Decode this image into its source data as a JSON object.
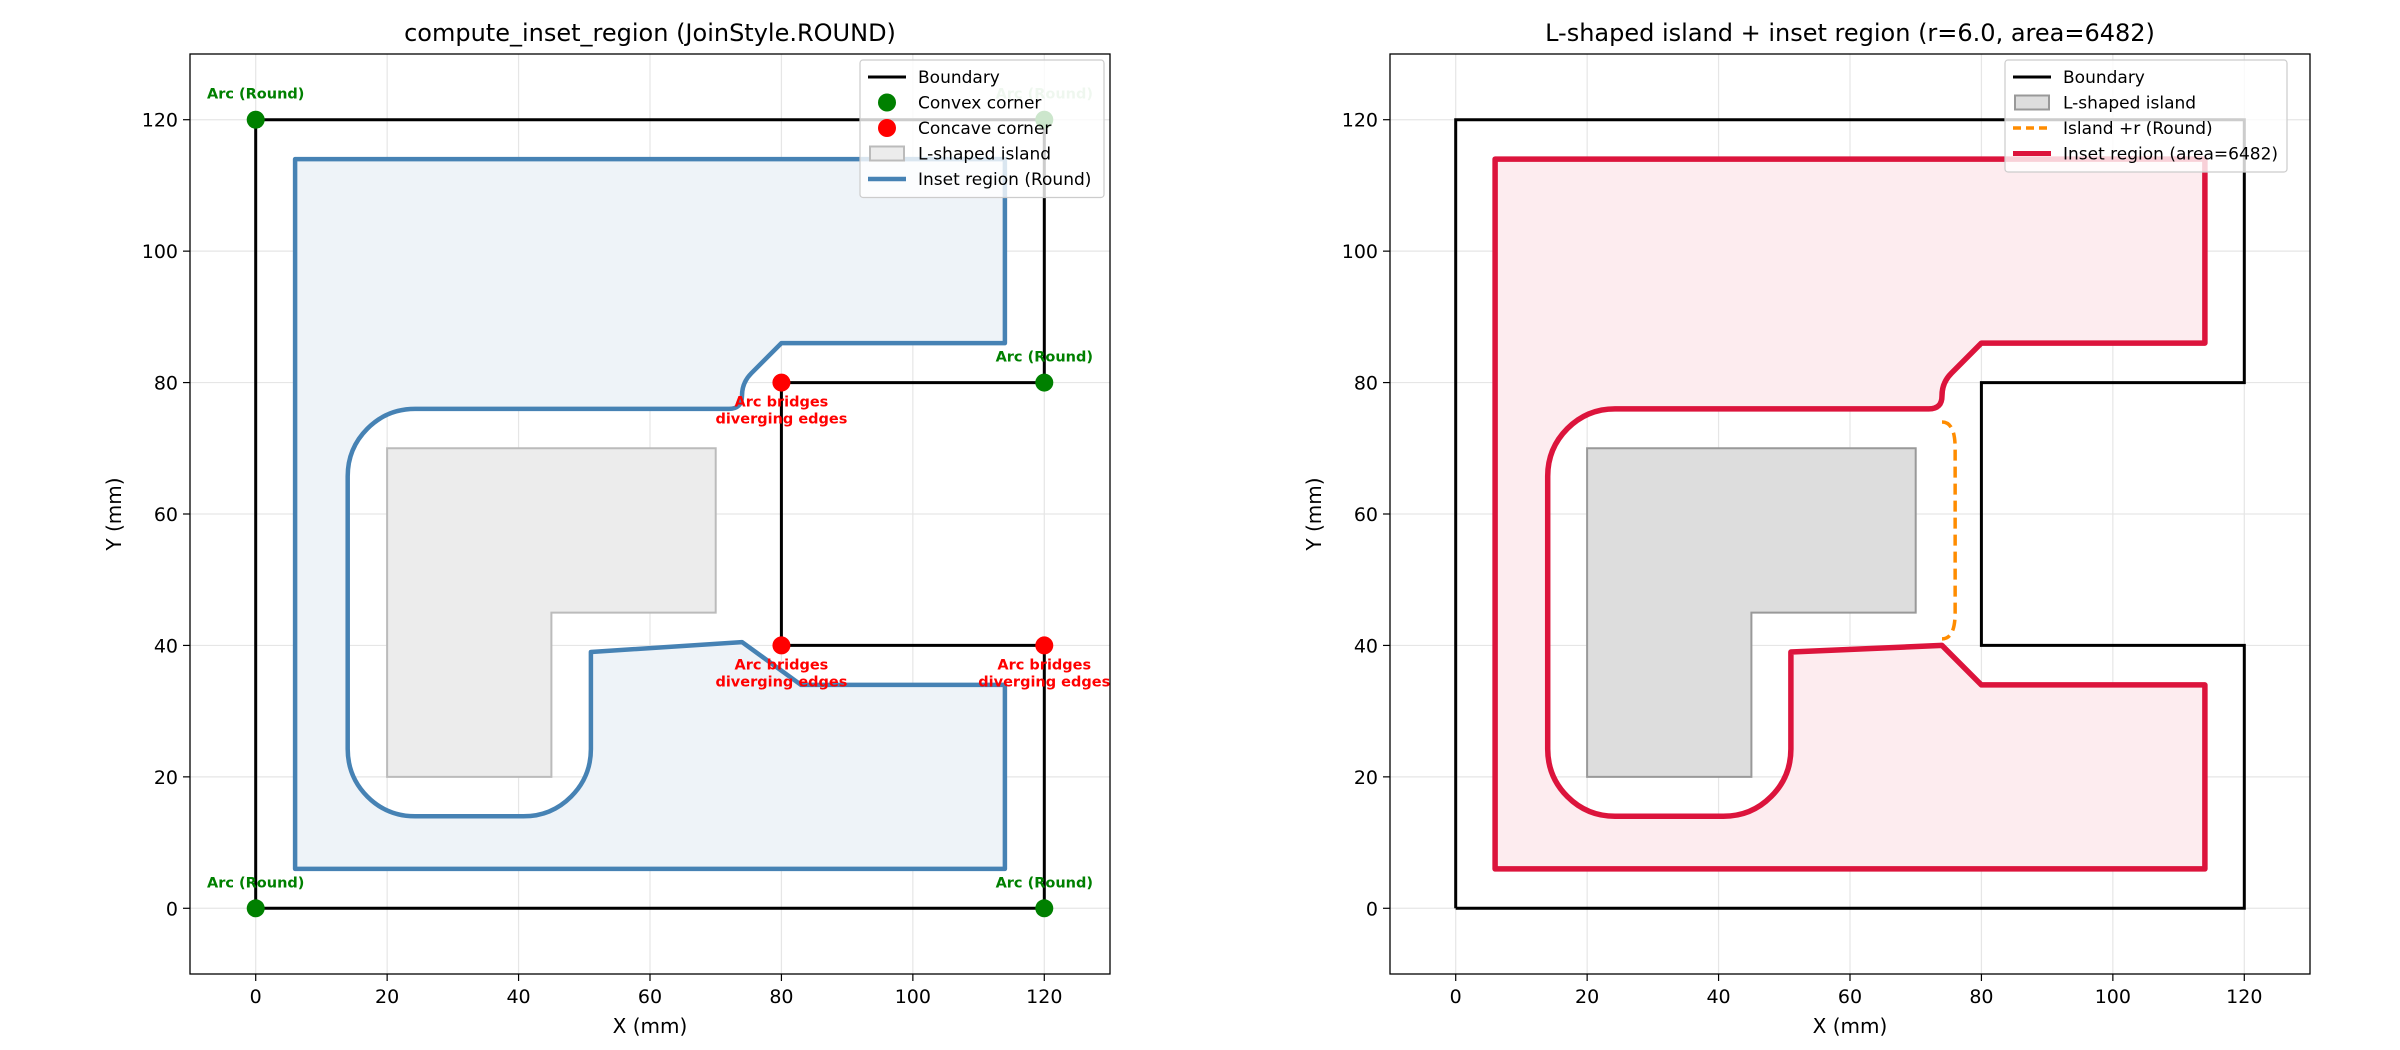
{
  "chart_data": [
    {
      "type": "line",
      "title": "compute_inset_region  (JoinStyle.ROUND)",
      "xlabel": "X (mm)",
      "ylabel": "Y (mm)",
      "xlim": [
        -10,
        130
      ],
      "ylim": [
        -10,
        130
      ],
      "xticks": [
        0,
        20,
        40,
        60,
        80,
        100,
        120
      ],
      "yticks": [
        0,
        20,
        40,
        60,
        80,
        100,
        120
      ],
      "grid": true,
      "legend_position": "top-right",
      "legend": [
        "Boundary",
        "Convex corner",
        "Concave corner",
        "L-shaped island",
        "Inset region (Round)"
      ],
      "boundary": [
        [
          0,
          0
        ],
        [
          120,
          0
        ],
        [
          120,
          40
        ],
        [
          80,
          40
        ],
        [
          80,
          80
        ],
        [
          120,
          80
        ],
        [
          120,
          120
        ],
        [
          0,
          120
        ],
        [
          0,
          0
        ]
      ],
      "island": [
        [
          20,
          20
        ],
        [
          45,
          20
        ],
        [
          45,
          45
        ],
        [
          70,
          45
        ],
        [
          70,
          70
        ],
        [
          20,
          70
        ],
        [
          20,
          20
        ]
      ],
      "inset_region": [
        [
          6,
          6
        ],
        [
          114,
          6
        ],
        [
          114,
          34
        ],
        [
          83,
          34
        ],
        [
          74,
          40.5
        ],
        [
          51,
          39
        ],
        [
          51,
          20
        ],
        [
          45,
          14
        ],
        [
          20,
          14
        ],
        [
          14,
          20
        ],
        [
          14,
          70
        ],
        [
          20,
          76
        ],
        [
          74,
          76
        ],
        [
          74,
          80
        ],
        [
          80,
          86
        ],
        [
          114,
          86
        ],
        [
          114,
          114
        ],
        [
          6,
          114
        ],
        [
          6,
          6
        ]
      ],
      "convex_corners": [
        [
          0,
          0
        ],
        [
          120,
          0
        ],
        [
          120,
          80
        ],
        [
          120,
          120
        ],
        [
          0,
          120
        ]
      ],
      "concave_corners": [
        [
          80,
          80
        ],
        [
          80,
          40
        ],
        [
          120,
          40
        ]
      ],
      "annotations": [
        {
          "text": "Arc (Round)",
          "x": 0,
          "y": 120,
          "kind": "convex"
        },
        {
          "text": "Arc (Round)",
          "x": 120,
          "y": 120,
          "kind": "convex-faded"
        },
        {
          "text": "Arc (Round)",
          "x": 120,
          "y": 80,
          "kind": "convex"
        },
        {
          "text": "Arc (Round)",
          "x": 0,
          "y": 0,
          "kind": "convex"
        },
        {
          "text": "Arc (Round)",
          "x": 120,
          "y": 0,
          "kind": "convex"
        },
        {
          "text": "Arc bridges",
          "text2": "diverging edges",
          "x": 80,
          "y": 80,
          "kind": "concave"
        },
        {
          "text": "Arc bridges",
          "text2": "diverging edges",
          "x": 80,
          "y": 40,
          "kind": "concave"
        },
        {
          "text": "Arc bridges",
          "text2": "diverging edges",
          "x": 120,
          "y": 40,
          "kind": "concave"
        }
      ],
      "colors": {
        "boundary": "#000000",
        "convex": "#008000",
        "concave": "#ff0000",
        "inset": "#4682b4",
        "inset_fill": "#eef3f8",
        "island_fill": "#ececec",
        "island_edge": "#bbbbbb"
      }
    },
    {
      "type": "line",
      "title": "L-shaped island + inset region  (r=6.0, area=6482)",
      "xlabel": "X (mm)",
      "ylabel": "Y (mm)",
      "xlim": [
        -10,
        130
      ],
      "ylim": [
        -10,
        130
      ],
      "xticks": [
        0,
        20,
        40,
        60,
        80,
        100,
        120
      ],
      "yticks": [
        0,
        20,
        40,
        60,
        80,
        100,
        120
      ],
      "grid": true,
      "legend_position": "top-right",
      "legend": [
        "Boundary",
        "L-shaped island",
        "Island +r (Round)",
        "Inset region  (area=6482)"
      ],
      "boundary": [
        [
          0,
          0
        ],
        [
          120,
          0
        ],
        [
          120,
          40
        ],
        [
          80,
          40
        ],
        [
          80,
          80
        ],
        [
          120,
          80
        ],
        [
          120,
          120
        ],
        [
          0,
          120
        ],
        [
          0,
          0
        ]
      ],
      "island": [
        [
          20,
          20
        ],
        [
          45,
          20
        ],
        [
          45,
          45
        ],
        [
          70,
          45
        ],
        [
          70,
          70
        ],
        [
          20,
          70
        ],
        [
          20,
          20
        ]
      ],
      "island_offset_arc": [
        [
          74,
          74
        ],
        [
          76,
          70
        ],
        [
          76,
          45
        ],
        [
          74,
          41
        ]
      ],
      "inset_region": [
        [
          6,
          6
        ],
        [
          114,
          6
        ],
        [
          114,
          34
        ],
        [
          80,
          34
        ],
        [
          74,
          40
        ],
        [
          51,
          39
        ],
        [
          51,
          20
        ],
        [
          45,
          14
        ],
        [
          20,
          14
        ],
        [
          14,
          20
        ],
        [
          14,
          70
        ],
        [
          20,
          76
        ],
        [
          74,
          76
        ],
        [
          74,
          80
        ],
        [
          80,
          86
        ],
        [
          114,
          86
        ],
        [
          114,
          114
        ],
        [
          6,
          114
        ],
        [
          6,
          6
        ]
      ],
      "area": 6482,
      "r": 6.0,
      "colors": {
        "boundary": "#000000",
        "island_fill": "#dddddd",
        "island_edge": "#999999",
        "offset": "#ff8c00",
        "inset": "#dc143c",
        "inset_fill": "#fdecef"
      }
    }
  ]
}
